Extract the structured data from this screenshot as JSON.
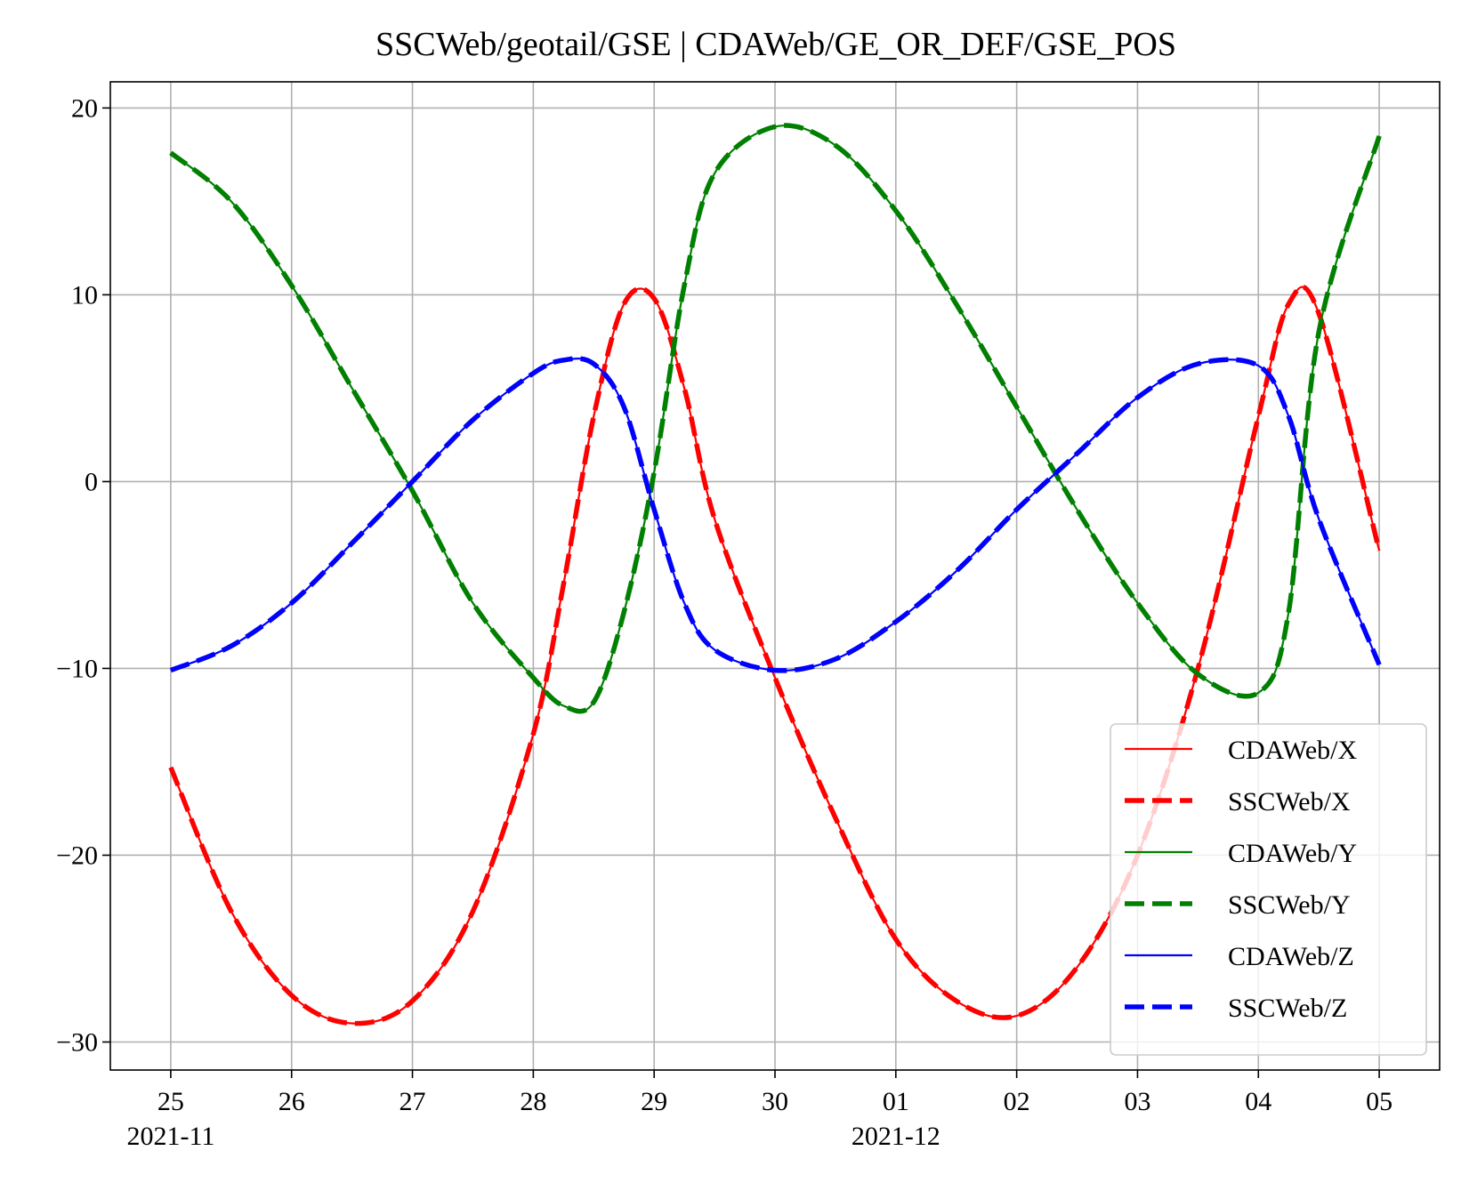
{
  "chart_data": {
    "type": "line",
    "title": "SSCWeb/geotail/GSE | CDAWeb/GE_OR_DEF/GSE_POS",
    "xlabel": "",
    "ylabel": "",
    "x_axis": "time",
    "xlim": [
      "2021-11-24T12:00",
      "2021-12-05T12:00"
    ],
    "ylim": [
      -31.5,
      21.4
    ],
    "grid": true,
    "legend_position": "lower-right",
    "x_ticks": [
      {
        "date": "2021-11-25",
        "label": "25",
        "sublabel": "2021-11"
      },
      {
        "date": "2021-11-26",
        "label": "26",
        "sublabel": ""
      },
      {
        "date": "2021-11-27",
        "label": "27",
        "sublabel": ""
      },
      {
        "date": "2021-11-28",
        "label": "28",
        "sublabel": ""
      },
      {
        "date": "2021-11-29",
        "label": "29",
        "sublabel": ""
      },
      {
        "date": "2021-11-30",
        "label": "30",
        "sublabel": ""
      },
      {
        "date": "2021-12-01",
        "label": "01",
        "sublabel": "2021-12"
      },
      {
        "date": "2021-12-02",
        "label": "02",
        "sublabel": ""
      },
      {
        "date": "2021-12-03",
        "label": "03",
        "sublabel": ""
      },
      {
        "date": "2021-12-04",
        "label": "04",
        "sublabel": ""
      },
      {
        "date": "2021-12-05",
        "label": "05",
        "sublabel": ""
      }
    ],
    "y_ticks": [
      {
        "value": 20,
        "label": "20"
      },
      {
        "value": 10,
        "label": "10"
      },
      {
        "value": 0,
        "label": "0"
      },
      {
        "value": -10,
        "label": "−10"
      },
      {
        "value": -20,
        "label": "−20"
      },
      {
        "value": -30,
        "label": "−30"
      }
    ],
    "x": [
      "2021-11-25T00:00",
      "2021-11-25T12:00",
      "2021-11-26T00:00",
      "2021-11-26T12:00",
      "2021-11-27T00:00",
      "2021-11-27T12:00",
      "2021-11-28T00:00",
      "2021-11-28T06:00",
      "2021-11-28T12:00",
      "2021-11-28T18:00",
      "2021-11-29T00:00",
      "2021-11-29T06:00",
      "2021-11-29T12:00",
      "2021-11-30T00:00",
      "2021-11-30T12:00",
      "2021-12-01T00:00",
      "2021-12-01T12:00",
      "2021-12-02T00:00",
      "2021-12-02T12:00",
      "2021-12-03T00:00",
      "2021-12-03T12:00",
      "2021-12-04T00:00",
      "2021-12-04T06:00",
      "2021-12-04T12:00",
      "2021-12-05T00:00"
    ],
    "series": [
      {
        "name": "CDAWeb/X",
        "color": "#ff0000",
        "style": "solid",
        "values": [
          -15.3,
          -23.0,
          -27.5,
          -29.0,
          -27.8,
          -23.0,
          -13.5,
          -5.5,
          3.5,
          9.5,
          9.8,
          5.0,
          -2.0,
          -10.5,
          -18.0,
          -24.5,
          -27.8,
          -28.6,
          -26.0,
          -20.0,
          -10.0,
          3.5,
          9.5,
          9.0,
          -3.7
        ]
      },
      {
        "name": "SSCWeb/X",
        "color": "#ff0000",
        "style": "dashed",
        "values": [
          -15.3,
          -23.0,
          -27.5,
          -29.0,
          -27.8,
          -23.0,
          -13.5,
          -5.5,
          3.5,
          9.5,
          9.8,
          5.0,
          -2.0,
          -10.5,
          -18.0,
          -24.5,
          -27.8,
          -28.6,
          -26.0,
          -20.0,
          -10.0,
          3.5,
          9.5,
          9.0,
          -3.7
        ]
      },
      {
        "name": "CDAWeb/Y",
        "color": "#008000",
        "style": "solid",
        "values": [
          17.6,
          15.0,
          10.5,
          5.0,
          -0.5,
          -6.5,
          -10.5,
          -12.0,
          -11.8,
          -7.0,
          0.5,
          10.5,
          16.5,
          19.0,
          18.0,
          14.5,
          9.5,
          4.0,
          -1.5,
          -6.5,
          -10.3,
          -11.3,
          -7.0,
          8.0,
          18.5
        ]
      },
      {
        "name": "SSCWeb/Y",
        "color": "#008000",
        "style": "dashed",
        "values": [
          17.6,
          15.0,
          10.5,
          5.0,
          -0.5,
          -6.5,
          -10.5,
          -12.0,
          -11.8,
          -7.0,
          0.5,
          10.5,
          16.5,
          19.0,
          18.0,
          14.5,
          9.5,
          4.0,
          -1.5,
          -6.5,
          -10.3,
          -11.3,
          -7.0,
          8.0,
          18.5
        ]
      },
      {
        "name": "CDAWeb/Z",
        "color": "#0000ff",
        "style": "solid",
        "values": [
          -10.1,
          -8.8,
          -6.5,
          -3.3,
          0.0,
          3.3,
          5.8,
          6.5,
          6.3,
          4.0,
          -1.5,
          -6.5,
          -9.0,
          -10.1,
          -9.5,
          -7.5,
          -4.8,
          -1.5,
          1.5,
          4.5,
          6.3,
          6.2,
          3.5,
          -2.0,
          -9.8
        ]
      },
      {
        "name": "SSCWeb/Z",
        "color": "#0000ff",
        "style": "dashed",
        "values": [
          -10.1,
          -8.8,
          -6.5,
          -3.3,
          0.0,
          3.3,
          5.8,
          6.5,
          6.3,
          4.0,
          -1.5,
          -6.5,
          -9.0,
          -10.1,
          -9.5,
          -7.5,
          -4.8,
          -1.5,
          1.5,
          4.5,
          6.3,
          6.2,
          3.5,
          -2.0,
          -9.8
        ]
      }
    ]
  }
}
